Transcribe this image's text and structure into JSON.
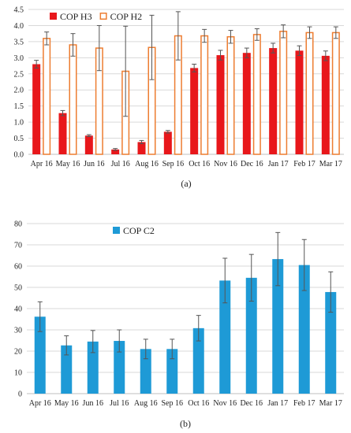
{
  "colors": {
    "h3": "#e8171b",
    "h2": "#ed7d31",
    "c2": "#1e9ad6",
    "err": "#555555"
  },
  "chart_data": [
    {
      "type": "bar",
      "panel_label": "(a)",
      "categories": [
        "Apr 16",
        "May 16",
        "Jun 16",
        "Jul 16",
        "Aug 16",
        "Sep 16",
        "Oct 16",
        "Nov 16",
        "Dec 16",
        "Jan 17",
        "Feb 17",
        "Mar 17"
      ],
      "ylim": [
        0,
        4.5
      ],
      "yticks": [
        "0.0",
        "0.5",
        "1.0",
        "1.5",
        "2.0",
        "2.5",
        "3.0",
        "3.5",
        "4.0",
        "4.5"
      ],
      "grid": true,
      "legend_position": "top-left",
      "series": [
        {
          "name": "COP H3",
          "style": "filled",
          "values": [
            2.8,
            1.28,
            0.58,
            0.15,
            0.38,
            0.7,
            2.68,
            3.08,
            3.15,
            3.3,
            3.22,
            3.06
          ],
          "errors": [
            0.12,
            0.08,
            0.03,
            0.03,
            0.05,
            0.04,
            0.12,
            0.15,
            0.15,
            0.15,
            0.15,
            0.15
          ]
        },
        {
          "name": "COP H2",
          "style": "outline",
          "values": [
            3.6,
            3.4,
            3.3,
            2.58,
            3.32,
            3.68,
            3.68,
            3.65,
            3.72,
            3.82,
            3.78,
            3.78
          ],
          "errors": [
            0.2,
            0.35,
            0.7,
            1.4,
            1.0,
            0.75,
            0.2,
            0.2,
            0.18,
            0.2,
            0.18,
            0.18
          ]
        }
      ]
    },
    {
      "type": "bar",
      "panel_label": "(b)",
      "categories": [
        "Apr 16",
        "May 16",
        "Jun 16",
        "Jul 16",
        "Aug 16",
        "Sep 16",
        "Oct 16",
        "Nov 16",
        "Dec 16",
        "Jan 17",
        "Feb 17",
        "Mar 17"
      ],
      "ylim": [
        0,
        80
      ],
      "yticks": [
        "0",
        "10",
        "20",
        "30",
        "40",
        "50",
        "60",
        "70",
        "80"
      ],
      "grid": true,
      "legend_position": "top-left",
      "series": [
        {
          "name": "COP C2",
          "style": "filled",
          "values": [
            36.2,
            22.7,
            24.5,
            24.8,
            21.0,
            21.0,
            30.8,
            53.2,
            54.5,
            63.3,
            60.5,
            47.8
          ],
          "errors": [
            7,
            4.5,
            5.2,
            5.2,
            4.6,
            4.6,
            6,
            10.5,
            11,
            12.5,
            12,
            9.5
          ]
        }
      ]
    }
  ]
}
